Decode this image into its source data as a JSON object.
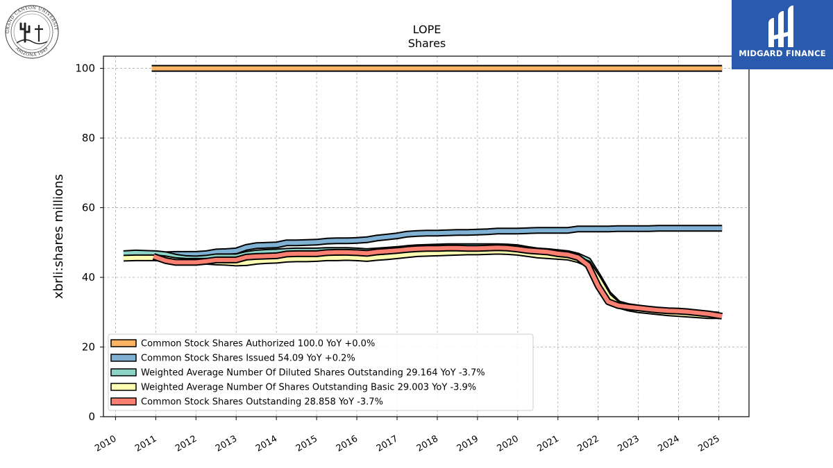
{
  "logos": {
    "university_seal": {
      "icon": "grand-canyon-university-seal",
      "text_top": "GRAND CANYON UNIVERSITY",
      "text_bottom": "ARIZONA 1949"
    },
    "brand": {
      "icon": "midgard-finance-logo",
      "name": "MIDGARD FINANCE",
      "color": "#2a5aad"
    }
  },
  "chart_data": {
    "type": "line",
    "title": "LOPE",
    "subtitle": "Shares",
    "ylabel": "xbrli:shares millions",
    "xlabel": "",
    "ylim": [
      0,
      103.5
    ],
    "xlim": [
      2009.7,
      2025.75
    ],
    "yticks": [
      0,
      20,
      40,
      60,
      80,
      100
    ],
    "xticks": [
      "2010",
      "2011",
      "2012",
      "2013",
      "2014",
      "2015",
      "2016",
      "2017",
      "2018",
      "2019",
      "2020",
      "2021",
      "2022",
      "2023",
      "2024",
      "2025"
    ],
    "grid": true,
    "legend_position": "lower-left",
    "series": [
      {
        "name": "Common Stock Shares Authorized",
        "legend": "Common Stock Shares Authorized  100.0 YoY +0.0%",
        "color": "#fdb462",
        "x": [
          2010.9,
          2025.08
        ],
        "y": [
          100.0,
          100.0
        ]
      },
      {
        "name": "Common Stock Shares Issued",
        "legend": "Common Stock Shares Issued  54.09 YoY +0.2%",
        "color": "#80b1d3",
        "x": [
          2011.25,
          2011.5,
          2011.75,
          2012.0,
          2012.25,
          2012.5,
          2012.75,
          2013.0,
          2013.25,
          2013.5,
          2013.75,
          2014.0,
          2014.25,
          2014.5,
          2014.75,
          2015.0,
          2015.25,
          2015.5,
          2015.75,
          2016.0,
          2016.25,
          2016.5,
          2016.75,
          2017.0,
          2017.25,
          2017.5,
          2017.75,
          2018.0,
          2018.25,
          2018.5,
          2018.75,
          2019.0,
          2019.25,
          2019.5,
          2019.75,
          2020.0,
          2020.25,
          2020.5,
          2020.75,
          2021.0,
          2021.25,
          2021.5,
          2021.75,
          2022.0,
          2022.25,
          2022.5,
          2022.75,
          2023.0,
          2023.25,
          2023.5,
          2023.75,
          2024.0,
          2024.25,
          2024.5,
          2024.75,
          2025.08
        ],
        "y": [
          46.5,
          46.6,
          46.6,
          46.6,
          46.8,
          47.3,
          47.4,
          47.6,
          48.6,
          49.1,
          49.2,
          49.3,
          49.9,
          49.9,
          50.0,
          50.1,
          50.4,
          50.5,
          50.5,
          50.6,
          50.8,
          51.3,
          51.6,
          51.9,
          52.4,
          52.6,
          52.7,
          52.7,
          52.8,
          52.9,
          52.9,
          53.0,
          53.1,
          53.3,
          53.3,
          53.3,
          53.4,
          53.5,
          53.5,
          53.5,
          53.5,
          53.9,
          53.9,
          53.9,
          53.9,
          54.0,
          54.0,
          54.0,
          54.0,
          54.1,
          54.1,
          54.1,
          54.1,
          54.1,
          54.1,
          54.09
        ]
      },
      {
        "name": "Weighted Average Number Of Diluted Shares Outstanding",
        "legend": "Weighted Average Number Of Diluted Shares Outstanding  29.164 YoY -3.7%",
        "color": "#8dd3c7",
        "x": [
          2010.2,
          2010.5,
          2010.75,
          2011.0,
          2011.25,
          2011.5,
          2011.75,
          2012.0,
          2012.25,
          2012.5,
          2012.75,
          2013.0,
          2013.25,
          2013.5,
          2013.75,
          2014.0,
          2014.25,
          2014.5,
          2014.75,
          2015.0,
          2015.25,
          2015.5,
          2015.75,
          2016.0,
          2016.25,
          2016.5,
          2016.75,
          2017.0,
          2017.25,
          2017.5,
          2017.75,
          2018.0,
          2018.25,
          2018.5,
          2018.75,
          2019.0,
          2019.25,
          2019.5,
          2019.75,
          2020.0,
          2020.25,
          2020.5,
          2020.75,
          2021.0,
          2021.25,
          2021.5,
          2021.75,
          2022.0,
          2022.25,
          2022.5,
          2022.75,
          2023.0,
          2023.25,
          2023.5,
          2023.75,
          2024.0,
          2024.25,
          2024.5,
          2024.75,
          2025.0
        ],
        "y": [
          46.8,
          47.0,
          46.9,
          46.8,
          46.5,
          45.8,
          45.4,
          45.3,
          45.5,
          45.9,
          45.9,
          45.9,
          46.6,
          47.0,
          47.2,
          47.3,
          47.5,
          47.6,
          47.6,
          47.6,
          47.7,
          47.7,
          47.7,
          47.6,
          47.4,
          47.6,
          47.8,
          48.0,
          48.3,
          48.5,
          48.6,
          48.7,
          48.8,
          48.8,
          48.8,
          48.8,
          48.8,
          48.8,
          48.7,
          48.5,
          48.0,
          47.6,
          47.4,
          47.1,
          46.8,
          46.1,
          44.8,
          40.2,
          35.2,
          32.4,
          31.6,
          31.2,
          30.8,
          30.5,
          30.2,
          30.0,
          29.8,
          29.6,
          29.4,
          29.164
        ]
      },
      {
        "name": "Weighted Average Number Of Shares Outstanding Basic",
        "legend": "Weighted Average Number Of Shares Outstanding Basic  29.003 YoY -3.9%",
        "color": "#ffffb3",
        "x": [
          2010.2,
          2010.5,
          2010.75,
          2011.0,
          2011.25,
          2011.5,
          2011.75,
          2012.0,
          2012.25,
          2012.5,
          2012.75,
          2013.0,
          2013.25,
          2013.5,
          2013.75,
          2014.0,
          2014.25,
          2014.5,
          2014.75,
          2015.0,
          2015.25,
          2015.5,
          2015.75,
          2016.0,
          2016.25,
          2016.5,
          2016.75,
          2017.0,
          2017.25,
          2017.5,
          2017.75,
          2018.0,
          2018.25,
          2018.5,
          2018.75,
          2019.0,
          2019.25,
          2019.5,
          2019.75,
          2020.0,
          2020.25,
          2020.5,
          2020.75,
          2021.0,
          2021.25,
          2021.5,
          2021.75,
          2022.0,
          2022.25,
          2022.5,
          2022.75,
          2023.0,
          2023.25,
          2023.5,
          2023.75,
          2024.0,
          2024.25,
          2024.5,
          2024.75,
          2025.0
        ],
        "y": [
          45.5,
          45.6,
          45.6,
          45.6,
          45.3,
          44.8,
          44.6,
          44.6,
          44.6,
          44.4,
          44.3,
          44.1,
          44.2,
          44.6,
          44.8,
          44.9,
          45.2,
          45.3,
          45.3,
          45.4,
          45.6,
          45.6,
          45.7,
          45.6,
          45.4,
          45.7,
          45.9,
          46.2,
          46.5,
          46.8,
          46.9,
          47.0,
          47.1,
          47.2,
          47.3,
          47.3,
          47.4,
          47.5,
          47.4,
          47.2,
          46.8,
          46.4,
          46.2,
          46.0,
          45.8,
          45.1,
          43.9,
          39.5,
          34.6,
          32.0,
          31.2,
          30.7,
          30.4,
          30.1,
          29.8,
          29.6,
          29.4,
          29.2,
          29.0,
          29.003
        ]
      },
      {
        "name": "Common Stock Shares Outstanding",
        "legend": "Common Stock Shares Outstanding  28.858 YoY -3.7%",
        "color": "#fb8072",
        "x": [
          2010.95,
          2011.25,
          2011.5,
          2011.75,
          2012.0,
          2012.25,
          2012.5,
          2012.75,
          2013.0,
          2013.25,
          2013.5,
          2013.75,
          2014.0,
          2014.25,
          2014.5,
          2014.75,
          2015.0,
          2015.25,
          2015.5,
          2015.75,
          2016.0,
          2016.25,
          2016.5,
          2016.75,
          2017.0,
          2017.25,
          2017.5,
          2017.75,
          2018.0,
          2018.25,
          2018.5,
          2018.75,
          2019.0,
          2019.25,
          2019.5,
          2019.75,
          2020.0,
          2020.25,
          2020.5,
          2020.75,
          2021.0,
          2021.25,
          2021.5,
          2021.75,
          2022.0,
          2022.25,
          2022.5,
          2022.75,
          2023.0,
          2023.25,
          2023.5,
          2023.75,
          2024.0,
          2024.25,
          2024.5,
          2024.75,
          2025.08
        ],
        "y": [
          46.0,
          44.8,
          44.3,
          44.3,
          44.3,
          44.6,
          45.0,
          45.0,
          45.0,
          45.8,
          46.0,
          46.1,
          46.2,
          46.7,
          46.8,
          46.8,
          46.8,
          47.1,
          47.2,
          47.2,
          47.1,
          46.9,
          47.3,
          47.5,
          47.7,
          48.0,
          48.2,
          48.3,
          48.3,
          48.4,
          48.4,
          48.3,
          48.3,
          48.4,
          48.5,
          48.4,
          48.1,
          47.7,
          47.5,
          47.3,
          46.8,
          46.5,
          45.7,
          43.5,
          37.5,
          33.0,
          31.9,
          31.5,
          31.2,
          30.9,
          30.6,
          30.4,
          30.3,
          30.1,
          29.8,
          29.5,
          28.858
        ]
      }
    ]
  }
}
